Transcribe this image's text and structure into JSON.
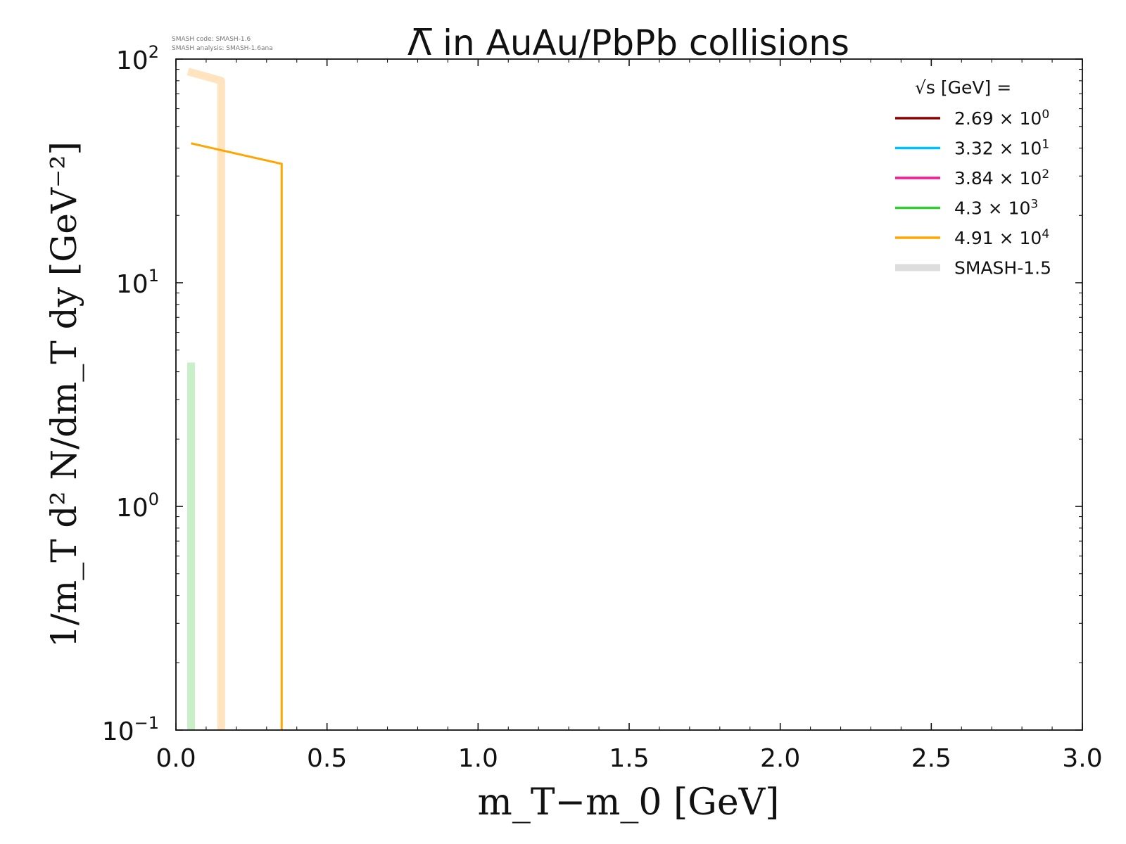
{
  "version_note": {
    "line1": "SMASH code:      SMASH-1.6",
    "line2": "SMASH analysis: SMASH-1.6ana"
  },
  "chart_data": {
    "type": "line",
    "title": "Λ̅ in AuAu/PbPb collisions",
    "xlabel": "m_T−m_0 [GeV]",
    "ylabel": "1/m_T d² N/dm_T dy [GeV⁻²]",
    "xlim": [
      0.0,
      3.0
    ],
    "ylim": [
      0.1,
      100
    ],
    "yscale": "log",
    "grid": false,
    "legend_position": "top-right",
    "legend_title": "√s [GeV] =",
    "x_ticks": [
      "0.0",
      "0.5",
      "1.0",
      "1.5",
      "2.0",
      "2.5",
      "3.0"
    ],
    "x_tick_values": [
      0.0,
      0.5,
      1.0,
      1.5,
      2.0,
      2.5,
      3.0
    ],
    "y_ticks": [
      {
        "value": 0.1,
        "base": "10",
        "exp": "−1"
      },
      {
        "value": 1,
        "base": "10",
        "exp": "0"
      },
      {
        "value": 10,
        "base": "10",
        "exp": "1"
      },
      {
        "value": 100,
        "base": "10",
        "exp": "2"
      }
    ],
    "series": [
      {
        "name": "2.69 × 10⁰",
        "label_base": "2.69 × 10",
        "label_exp": "0",
        "color": "#8b0000",
        "style": "current",
        "x": [],
        "y": []
      },
      {
        "name": "3.32 × 10¹",
        "label_base": "3.32 × 10",
        "label_exp": "1",
        "color": "#00bfff",
        "style": "current",
        "x": [],
        "y": []
      },
      {
        "name": "3.84 × 10²",
        "label_base": "3.84 × 10",
        "label_exp": "2",
        "color": "#ff1493",
        "style": "current",
        "x": [],
        "y": []
      },
      {
        "name": "4.3 × 10³",
        "label_base": "4.3 × 10",
        "label_exp": "3",
        "color": "#32cd32",
        "style": "current",
        "x": [],
        "y": []
      },
      {
        "name": "4.91 × 10⁴",
        "label_base": "4.91 × 10",
        "label_exp": "4",
        "color": "#ffa500",
        "style": "current",
        "x": [
          0.05,
          0.35,
          0.35
        ],
        "y": [
          42,
          34,
          0.1
        ]
      },
      {
        "name": "SMASH-1.5",
        "label_base": "SMASH-1.5",
        "label_exp": "",
        "color": "#dddddd",
        "style": "reference",
        "x": [],
        "y": []
      }
    ],
    "reference_curves": [
      {
        "color": "#ffe4bf",
        "x": [
          0.04,
          0.15,
          0.15
        ],
        "y": [
          88,
          80,
          0.1
        ]
      },
      {
        "color": "#c9efc9",
        "x": [
          0.05,
          0.05
        ],
        "y": [
          4.4,
          0.1
        ]
      }
    ]
  }
}
